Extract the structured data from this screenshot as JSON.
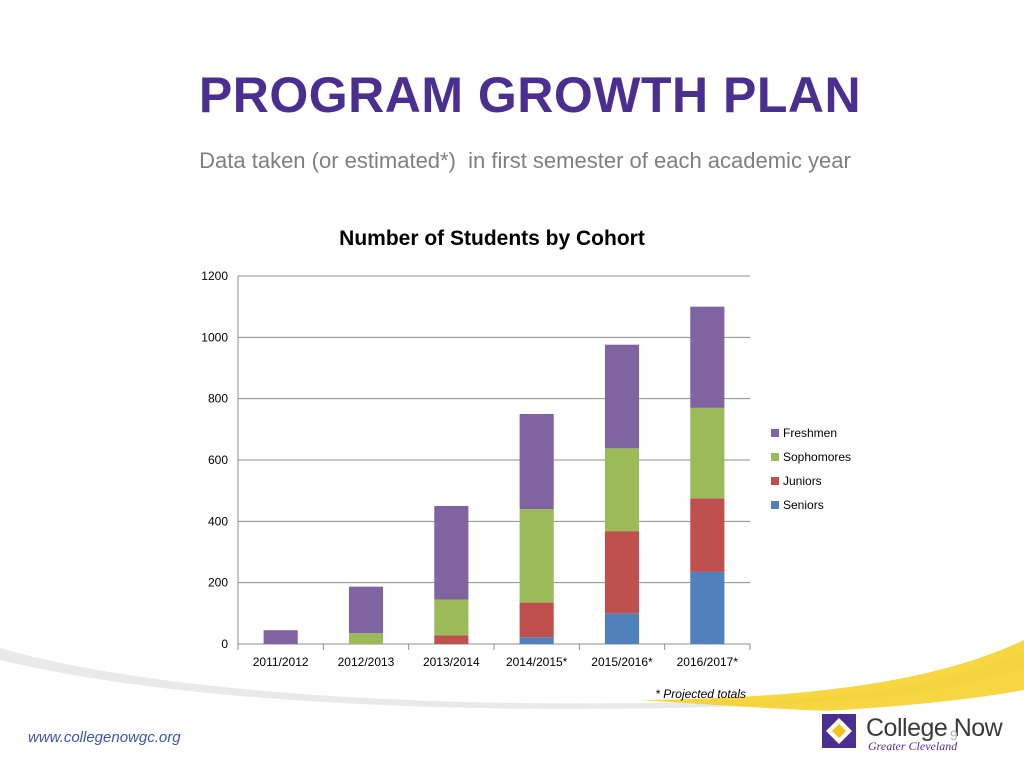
{
  "slide": {
    "title": "PROGRAM GROWTH PLAN",
    "subtitle": "Data taken (or estimated*)  in first semester of each academic year",
    "footnote": "* Projected totals",
    "footer_url": "www.collegenowgc.org",
    "page_number": "9"
  },
  "logo": {
    "name": "College Now",
    "subtitle": "Greater Cleveland"
  },
  "colors": {
    "title": "#4b2f90",
    "Freshmen": "#8064a2",
    "Sophomores": "#9bbb59",
    "Juniors": "#c0504d",
    "Seniors": "#4f81bd"
  },
  "chart_data": {
    "type": "bar",
    "stacked": true,
    "title": "Number of Students by Cohort",
    "categories": [
      "2011/2012",
      "2012/2013",
      "2013/2014",
      "2014/2015*",
      "2015/2016*",
      "2016/2017*"
    ],
    "series": [
      {
        "name": "Seniors",
        "values": [
          0,
          0,
          0,
          22,
          100,
          235
        ]
      },
      {
        "name": "Juniors",
        "values": [
          0,
          0,
          28,
          113,
          268,
          240
        ]
      },
      {
        "name": "Sophomores",
        "values": [
          0,
          35,
          117,
          305,
          270,
          295
        ]
      },
      {
        "name": "Freshmen",
        "values": [
          45,
          152,
          305,
          310,
          338,
          330
        ]
      }
    ],
    "legend_order": [
      "Freshmen",
      "Sophomores",
      "Juniors",
      "Seniors"
    ],
    "ylim": [
      0,
      1200
    ],
    "yticks": [
      0,
      200,
      400,
      600,
      800,
      1000,
      1200
    ],
    "grid": true,
    "legend_position": "right"
  }
}
